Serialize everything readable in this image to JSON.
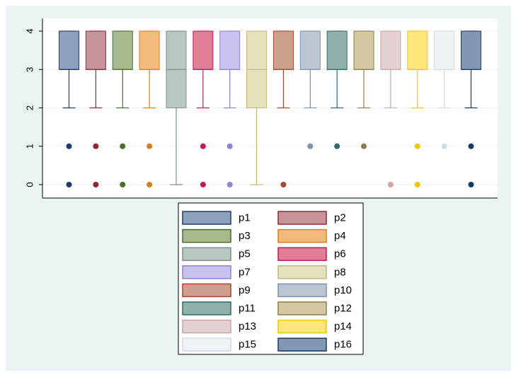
{
  "chart_data": {
    "type": "box",
    "title": "",
    "xlabel": "",
    "ylabel": "",
    "ylim": [
      0,
      4
    ],
    "yticks": [
      0,
      1,
      2,
      3,
      4
    ],
    "grid": true,
    "legend_position": "bottom",
    "legend_columns": 2,
    "series": [
      {
        "name": "p1",
        "color": "#8da0bc",
        "stroke": "#1f3b67",
        "q1": 3,
        "median": 3,
        "q3": 4,
        "lower_whisker": 2,
        "upper_whisker": 4,
        "outliers": [
          1,
          0
        ]
      },
      {
        "name": "p2",
        "color": "#c9939a",
        "stroke": "#8b2a35",
        "q1": 3,
        "median": 3,
        "q3": 4,
        "lower_whisker": 2,
        "upper_whisker": 4,
        "outliers": [
          1,
          0
        ]
      },
      {
        "name": "p3",
        "color": "#a8b98d",
        "stroke": "#4d6b2a",
        "q1": 3,
        "median": 3,
        "q3": 4,
        "lower_whisker": 2,
        "upper_whisker": 4,
        "outliers": [
          1,
          0
        ]
      },
      {
        "name": "p4",
        "color": "#f2bb7c",
        "stroke": "#d97e1a",
        "q1": 3,
        "median": 3,
        "q3": 4,
        "lower_whisker": 2,
        "upper_whisker": 4,
        "outliers": [
          1,
          0
        ]
      },
      {
        "name": "p5",
        "color": "#b7c8c1",
        "stroke": "#7c9189",
        "q1": 2,
        "median": 3,
        "q3": 4,
        "lower_whisker": 0,
        "upper_whisker": 4,
        "outliers": []
      },
      {
        "name": "p6",
        "color": "#e07d97",
        "stroke": "#c2185b",
        "q1": 3,
        "median": 3,
        "q3": 4,
        "lower_whisker": 2,
        "upper_whisker": 4,
        "outliers": [
          1,
          0
        ]
      },
      {
        "name": "p7",
        "color": "#c8c2ef",
        "stroke": "#8f82d6",
        "q1": 3,
        "median": 3,
        "q3": 4,
        "lower_whisker": 2,
        "upper_whisker": 4,
        "outliers": [
          1,
          0
        ]
      },
      {
        "name": "p8",
        "color": "#e6e1bd",
        "stroke": "#c0b87a",
        "q1": 2,
        "median": 3,
        "q3": 4,
        "lower_whisker": 0,
        "upper_whisker": 4,
        "outliers": []
      },
      {
        "name": "p9",
        "color": "#cda08d",
        "stroke": "#a4472a",
        "q1": 3,
        "median": 3,
        "q3": 4,
        "lower_whisker": 2,
        "upper_whisker": 4,
        "outliers": [
          0
        ]
      },
      {
        "name": "p10",
        "color": "#bcc6d3",
        "stroke": "#7f93ad",
        "q1": 3,
        "median": 3,
        "q3": 4,
        "lower_whisker": 2,
        "upper_whisker": 4,
        "outliers": [
          1
        ]
      },
      {
        "name": "p11",
        "color": "#8fb0ab",
        "stroke": "#2c6b66",
        "q1": 3,
        "median": 3,
        "q3": 4,
        "lower_whisker": 2,
        "upper_whisker": 4,
        "outliers": [
          1
        ]
      },
      {
        "name": "p12",
        "color": "#d4c8a3",
        "stroke": "#8f7d45",
        "q1": 3,
        "median": 3,
        "q3": 4,
        "lower_whisker": 2,
        "upper_whisker": 4,
        "outliers": [
          1
        ]
      },
      {
        "name": "p13",
        "color": "#e3d0d0",
        "stroke": "#c9a5a5",
        "q1": 3,
        "median": 3,
        "q3": 4,
        "lower_whisker": 2,
        "upper_whisker": 4,
        "outliers": [
          0
        ]
      },
      {
        "name": "p14",
        "color": "#fde67a",
        "stroke": "#f1c40f",
        "q1": 3,
        "median": 3,
        "q3": 4,
        "lower_whisker": 2,
        "upper_whisker": 4,
        "outliers": [
          1,
          0
        ]
      },
      {
        "name": "p15",
        "color": "#eef3f5",
        "stroke": "#cfdde3",
        "q1": 3,
        "median": 3,
        "q3": 4,
        "lower_whisker": 2,
        "upper_whisker": 4,
        "outliers": [
          1
        ]
      },
      {
        "name": "p16",
        "color": "#8197b4",
        "stroke": "#1a3a66",
        "q1": 3,
        "median": 3,
        "q3": 4,
        "lower_whisker": 2,
        "upper_whisker": 4,
        "outliers": [
          1,
          0
        ]
      }
    ]
  }
}
